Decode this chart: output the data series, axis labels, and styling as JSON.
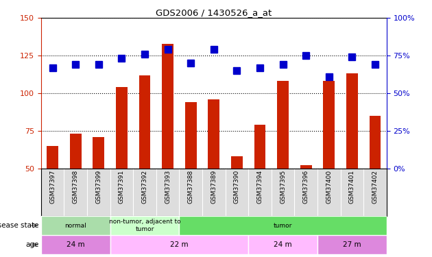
{
  "title": "GDS2006 / 1430526_a_at",
  "samples": [
    "GSM37397",
    "GSM37398",
    "GSM37399",
    "GSM37391",
    "GSM37392",
    "GSM37393",
    "GSM37388",
    "GSM37389",
    "GSM37390",
    "GSM37394",
    "GSM37395",
    "GSM37396",
    "GSM37400",
    "GSM37401",
    "GSM37402"
  ],
  "count": [
    65,
    73,
    71,
    104,
    112,
    133,
    94,
    96,
    58,
    79,
    108,
    52,
    108,
    113,
    85
  ],
  "percentile": [
    67,
    69,
    69,
    73,
    76,
    79,
    70,
    79,
    65,
    67,
    69,
    75,
    61,
    74,
    69
  ],
  "count_color": "#cc2200",
  "percentile_color": "#0000cc",
  "ylim_left": [
    50,
    150
  ],
  "ylim_right": [
    0,
    100
  ],
  "yticks_left": [
    50,
    75,
    100,
    125,
    150
  ],
  "yticks_right": [
    0,
    25,
    50,
    75,
    100
  ],
  "ytick_labels_right": [
    "0%",
    "25%",
    "50%",
    "75%",
    "100%"
  ],
  "disease_state_groups": [
    {
      "label": "normal",
      "start": 0,
      "end": 3,
      "color": "#aaddaa"
    },
    {
      "label": "non-tumor, adjacent to\ntumor",
      "start": 3,
      "end": 6,
      "color": "#ccffcc"
    },
    {
      "label": "tumor",
      "start": 6,
      "end": 15,
      "color": "#66dd66"
    }
  ],
  "age_groups": [
    {
      "label": "24 m",
      "start": 0,
      "end": 3,
      "color": "#dd88dd"
    },
    {
      "label": "22 m",
      "start": 3,
      "end": 9,
      "color": "#ffbbff"
    },
    {
      "label": "24 m",
      "start": 9,
      "end": 12,
      "color": "#ffbbff"
    },
    {
      "label": "27 m",
      "start": 12,
      "end": 15,
      "color": "#dd88dd"
    }
  ],
  "bg_color": "#ffffff",
  "tick_label_color_left": "#cc2200",
  "tick_label_color_right": "#0000cc",
  "bar_width": 0.5,
  "marker_size": 7,
  "xticklabel_bg": "#dddddd",
  "n_samples": 15
}
